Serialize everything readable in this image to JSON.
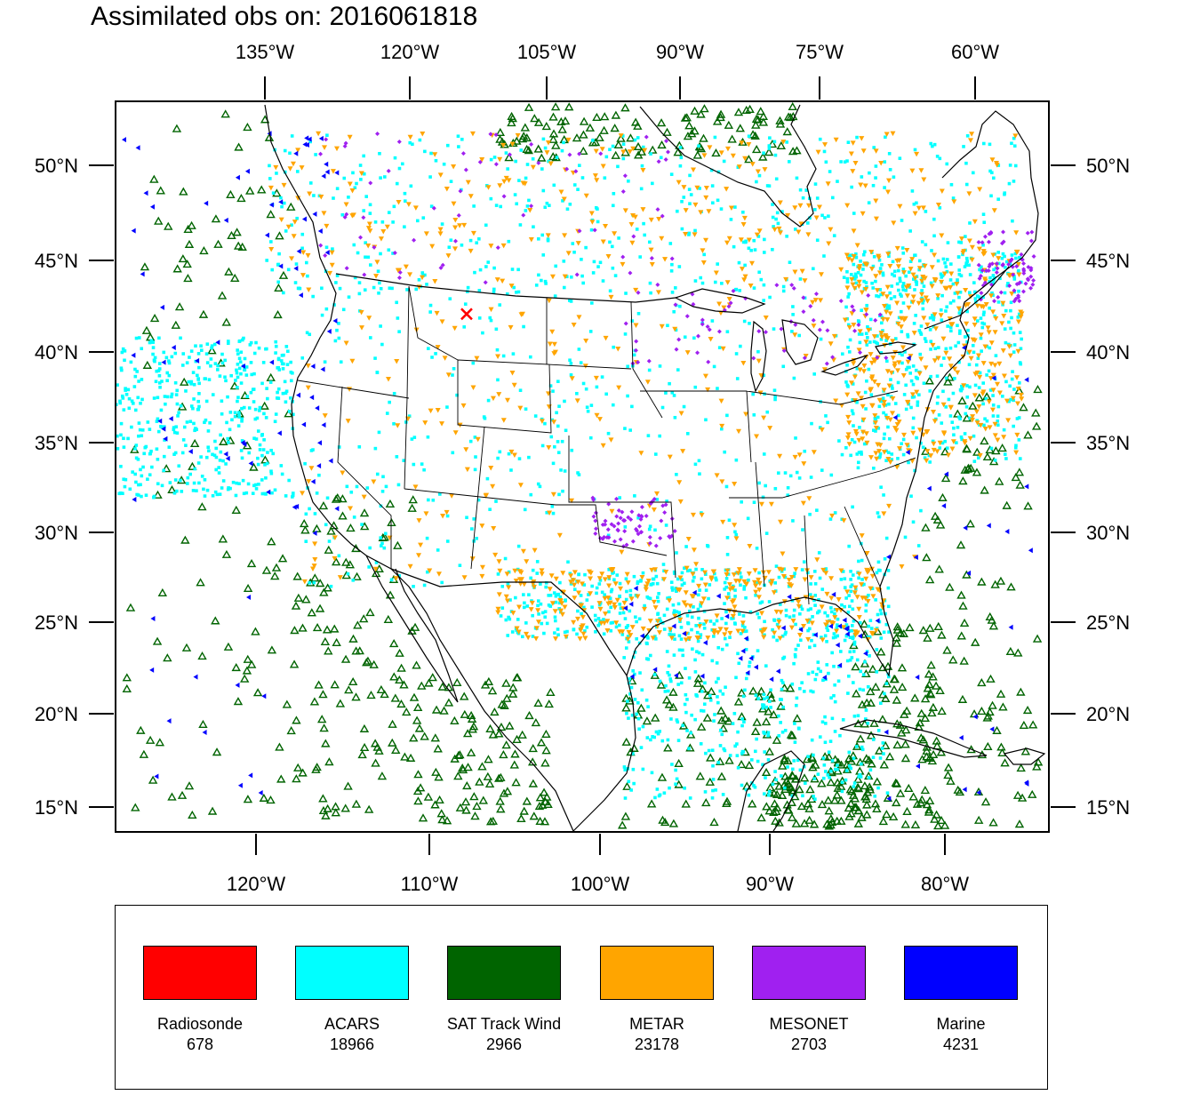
{
  "title": "Assimilated obs on: 2016061818",
  "axes": {
    "top_lon_labels": [
      "135°W",
      "120°W",
      "105°W",
      "90°W",
      "75°W",
      "60°W"
    ],
    "bottom_lon_labels": [
      "120°W",
      "110°W",
      "100°W",
      "90°W",
      "80°W"
    ],
    "lat_labels": [
      "50°N",
      "45°N",
      "40°N",
      "35°N",
      "30°N",
      "25°N",
      "20°N",
      "15°N"
    ]
  },
  "legend": [
    {
      "name": "Radiosonde",
      "count": "678",
      "color": "#ff0000"
    },
    {
      "name": "ACARS",
      "count": "18966",
      "color": "#00ffff"
    },
    {
      "name": "SAT Track Wind",
      "count": "2966",
      "color": "#006400"
    },
    {
      "name": "METAR",
      "count": "23178",
      "color": "#ffa500"
    },
    {
      "name": "MESONET",
      "count": "2703",
      "color": "#a020f0"
    },
    {
      "name": "Marine",
      "count": "4231",
      "color": "#0000ff"
    }
  ],
  "observation_markers": {
    "radiosonde": {
      "symbol": "cross",
      "color": "#ff0000",
      "lat": 42.0,
      "lon": -108.0
    },
    "acars": {
      "symbol": "square-dot",
      "color": "#00ffff"
    },
    "sat_track_wind": {
      "symbol": "open-triangle",
      "color": "#006400"
    },
    "metar": {
      "symbol": "down-triangle",
      "color": "#ffa500"
    },
    "mesonet": {
      "symbol": "diamond",
      "color": "#a020f0"
    },
    "marine": {
      "symbol": "left-triangle",
      "color": "#0000ff"
    }
  }
}
